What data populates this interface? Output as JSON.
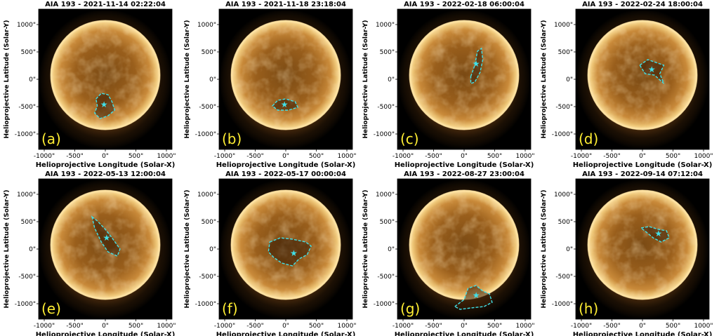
{
  "panels": [
    {
      "title": "AIA 193 -  2021-11-14 02:22:04",
      "label": "(a)",
      "region": "a"
    },
    {
      "title": "AIA 193 -  2021-11-18 23:18:04",
      "label": "(b)",
      "region": "b"
    },
    {
      "title": "AIA 193 -  2022-02-18 06:00:04",
      "label": "(c)",
      "region": "c"
    },
    {
      "title": "AIA 193 -  2022-02-24 18:00:04",
      "label": "(d)",
      "region": "d"
    },
    {
      "title": "AIA 193 - 2022-05-13 12:00:04",
      "label": "(e)",
      "region": "e"
    },
    {
      "title": "AIA 193 -  2022-05-17 00:00:04",
      "label": "(f)",
      "region": "f"
    },
    {
      "title": "AIA 193 -  2022-08-27 23:00:04",
      "label": "(g)",
      "region": "g"
    },
    {
      "title": "AIA 193 -  2022-09-14 07:12:04",
      "label": "(h)",
      "region": "h"
    }
  ],
  "x_axis_label": "Helioprojective Longitude (Solar-X)",
  "y_axis_label": "Helioprojective Latitude (Solar-Y)",
  "x_ticks": [
    "-1000\"",
    "-500\"",
    "0\"",
    "500\"",
    "1000\""
  ],
  "y_ticks": [
    "1000\"",
    "500\"",
    "0\"",
    "-500\"",
    "-1000\""
  ],
  "colors": {
    "contour": "#40e0e8",
    "label": "#ffee33",
    "background": "#ffffff",
    "sun_core": "#c98a3a",
    "sun_limb": "#ffe6b0"
  }
}
